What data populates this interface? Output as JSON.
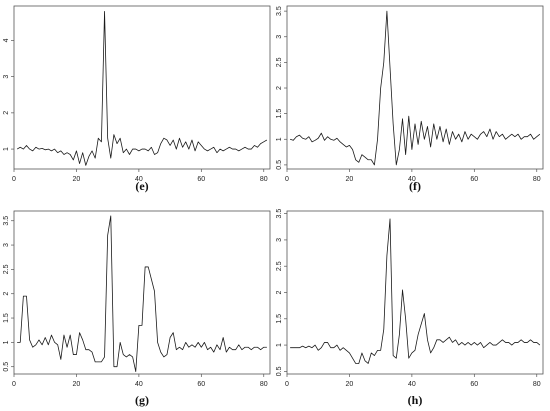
{
  "chart_data": [
    {
      "type": "line",
      "caption": "(e)",
      "xlim": [
        0,
        82
      ],
      "ylim": [
        0.45,
        4.95
      ],
      "x_ticks": [
        0,
        20,
        40,
        60,
        80
      ],
      "y_ticks": [
        1,
        2,
        3,
        4
      ],
      "x": [
        1,
        2,
        3,
        4,
        5,
        6,
        7,
        8,
        9,
        10,
        11,
        12,
        13,
        14,
        15,
        16,
        17,
        18,
        19,
        20,
        21,
        22,
        23,
        24,
        25,
        26,
        27,
        28,
        29,
        30,
        31,
        32,
        33,
        34,
        35,
        36,
        37,
        38,
        39,
        40,
        41,
        42,
        43,
        44,
        45,
        46,
        47,
        48,
        49,
        50,
        51,
        52,
        53,
        54,
        55,
        56,
        57,
        58,
        59,
        60,
        61,
        62,
        63,
        64,
        65,
        66,
        67,
        68,
        69,
        70,
        71,
        72,
        73,
        74,
        75,
        76,
        77,
        78,
        79,
        80,
        81
      ],
      "series": [
        {
          "values": [
            1.0,
            1.05,
            1.0,
            1.1,
            1.0,
            0.95,
            1.05,
            1.0,
            1.02,
            0.98,
            1.0,
            0.95,
            1.0,
            0.9,
            0.95,
            0.85,
            0.9,
            0.85,
            0.7,
            0.95,
            0.6,
            0.9,
            0.55,
            0.8,
            0.95,
            0.75,
            1.3,
            1.2,
            4.8,
            1.3,
            0.75,
            1.4,
            1.15,
            1.3,
            0.9,
            1.0,
            0.85,
            1.0,
            1.0,
            0.95,
            1.0,
            1.0,
            0.95,
            1.05,
            0.85,
            0.9,
            1.15,
            1.3,
            1.25,
            1.1,
            1.25,
            1.0,
            1.3,
            1.05,
            1.2,
            1.0,
            1.25,
            0.95,
            1.2,
            1.1,
            1.0,
            0.95,
            1.0,
            1.05,
            0.9,
            1.0,
            0.95,
            1.0,
            1.05,
            1.0,
            1.0,
            0.95,
            1.0,
            1.05,
            1.0,
            1.0,
            1.1,
            1.05,
            1.15,
            1.2,
            1.25
          ]
        }
      ]
    },
    {
      "type": "line",
      "caption": "(f)",
      "xlim": [
        0,
        82
      ],
      "ylim": [
        0.42,
        3.6
      ],
      "x_ticks": [
        0,
        20,
        40,
        60,
        80
      ],
      "y_ticks": [
        0.5,
        1.0,
        1.5,
        2.0,
        2.5,
        3.0,
        3.5
      ],
      "x": [
        1,
        2,
        3,
        4,
        5,
        6,
        7,
        8,
        9,
        10,
        11,
        12,
        13,
        14,
        15,
        16,
        17,
        18,
        19,
        20,
        21,
        22,
        23,
        24,
        25,
        26,
        27,
        28,
        29,
        30,
        31,
        32,
        33,
        34,
        35,
        36,
        37,
        38,
        39,
        40,
        41,
        42,
        43,
        44,
        45,
        46,
        47,
        48,
        49,
        50,
        51,
        52,
        53,
        54,
        55,
        56,
        57,
        58,
        59,
        60,
        61,
        62,
        63,
        64,
        65,
        66,
        67,
        68,
        69,
        70,
        71,
        72,
        73,
        74,
        75,
        76,
        77,
        78,
        79,
        80,
        81
      ],
      "series": [
        {
          "values": [
            1.0,
            0.98,
            1.05,
            1.08,
            1.02,
            1.0,
            1.05,
            0.95,
            0.98,
            1.02,
            1.12,
            0.98,
            1.05,
            1.0,
            0.98,
            1.02,
            0.95,
            0.9,
            0.85,
            0.88,
            0.8,
            0.6,
            0.55,
            0.7,
            0.65,
            0.6,
            0.6,
            0.5,
            1.0,
            2.0,
            2.5,
            3.5,
            2.4,
            1.3,
            0.5,
            0.8,
            1.4,
            0.7,
            1.45,
            0.8,
            1.3,
            0.9,
            1.35,
            1.0,
            1.25,
            0.85,
            1.3,
            1.0,
            1.25,
            0.95,
            1.2,
            0.9,
            1.15,
            1.0,
            1.1,
            0.95,
            1.15,
            1.0,
            1.1,
            1.05,
            1.0,
            1.1,
            1.15,
            1.05,
            1.2,
            1.0,
            1.15,
            1.05,
            1.1,
            1.0,
            1.05,
            1.1,
            1.05,
            1.1,
            1.0,
            1.05,
            1.05,
            1.1,
            1.0,
            1.05,
            1.1
          ]
        }
      ]
    },
    {
      "type": "line",
      "caption": "(g)",
      "xlim": [
        0,
        82
      ],
      "ylim": [
        0.35,
        3.7
      ],
      "x_ticks": [
        0,
        20,
        40,
        60,
        80
      ],
      "y_ticks": [
        0.5,
        1.0,
        1.5,
        2.0,
        2.5,
        3.0,
        3.5
      ],
      "x": [
        1,
        2,
        3,
        4,
        5,
        6,
        7,
        8,
        9,
        10,
        11,
        12,
        13,
        14,
        15,
        16,
        17,
        18,
        19,
        20,
        21,
        22,
        23,
        24,
        25,
        26,
        27,
        28,
        29,
        30,
        31,
        32,
        33,
        34,
        35,
        36,
        37,
        38,
        39,
        40,
        41,
        42,
        43,
        44,
        45,
        46,
        47,
        48,
        49,
        50,
        51,
        52,
        53,
        54,
        55,
        56,
        57,
        58,
        59,
        60,
        61,
        62,
        63,
        64,
        65,
        66,
        67,
        68,
        69,
        70,
        71,
        72,
        73,
        74,
        75,
        76,
        77,
        78,
        79,
        80,
        81
      ],
      "series": [
        {
          "values": [
            1.0,
            1.0,
            1.95,
            1.95,
            1.05,
            0.9,
            0.95,
            1.05,
            0.95,
            1.1,
            0.95,
            1.15,
            1.0,
            0.95,
            0.65,
            1.15,
            0.9,
            1.15,
            0.75,
            0.75,
            1.2,
            1.05,
            0.85,
            0.85,
            0.8,
            0.6,
            0.6,
            0.6,
            0.7,
            3.2,
            3.6,
            0.5,
            0.5,
            1.0,
            0.75,
            0.7,
            0.75,
            0.7,
            0.4,
            1.35,
            1.35,
            2.55,
            2.55,
            2.3,
            2.05,
            1.0,
            0.8,
            0.7,
            0.75,
            1.1,
            1.2,
            0.85,
            0.9,
            0.85,
            1.0,
            0.9,
            0.95,
            0.9,
            1.0,
            0.9,
            1.0,
            0.85,
            0.9,
            0.8,
            0.95,
            0.85,
            1.1,
            0.8,
            0.9,
            0.85,
            0.85,
            0.95,
            0.85,
            0.9,
            0.9,
            0.85,
            0.9,
            0.9,
            0.85,
            0.9,
            0.9
          ]
        }
      ]
    },
    {
      "type": "line",
      "caption": "(h)",
      "xlim": [
        0,
        82
      ],
      "ylim": [
        0.45,
        3.55
      ],
      "x_ticks": [
        0,
        20,
        40,
        60,
        80
      ],
      "y_ticks": [
        0.5,
        1.0,
        1.5,
        2.0,
        2.5,
        3.0,
        3.5
      ],
      "x": [
        1,
        2,
        3,
        4,
        5,
        6,
        7,
        8,
        9,
        10,
        11,
        12,
        13,
        14,
        15,
        16,
        17,
        18,
        19,
        20,
        21,
        22,
        23,
        24,
        25,
        26,
        27,
        28,
        29,
        30,
        31,
        32,
        33,
        34,
        35,
        36,
        37,
        38,
        39,
        40,
        41,
        42,
        43,
        44,
        45,
        46,
        47,
        48,
        49,
        50,
        51,
        52,
        53,
        54,
        55,
        56,
        57,
        58,
        59,
        60,
        61,
        62,
        63,
        64,
        65,
        66,
        67,
        68,
        69,
        70,
        71,
        72,
        73,
        74,
        75,
        76,
        77,
        78,
        79,
        80,
        81
      ],
      "series": [
        {
          "values": [
            0.95,
            0.95,
            0.95,
            0.95,
            0.98,
            0.95,
            0.98,
            0.95,
            1.0,
            0.9,
            0.95,
            1.05,
            1.05,
            0.95,
            0.95,
            1.0,
            0.9,
            0.95,
            0.9,
            0.85,
            0.75,
            0.65,
            0.65,
            0.85,
            0.7,
            0.65,
            0.85,
            0.8,
            0.9,
            0.9,
            1.3,
            2.7,
            3.4,
            0.8,
            0.75,
            1.2,
            2.05,
            1.5,
            0.75,
            0.85,
            0.9,
            1.2,
            1.4,
            1.6,
            1.1,
            0.85,
            0.95,
            1.1,
            1.1,
            1.05,
            1.1,
            1.15,
            1.05,
            1.1,
            1.0,
            1.05,
            1.0,
            1.05,
            1.0,
            1.05,
            1.0,
            1.05,
            0.95,
            1.0,
            1.05,
            1.0,
            1.0,
            1.05,
            1.1,
            1.05,
            1.05,
            1.0,
            1.05,
            1.05,
            1.1,
            1.05,
            1.05,
            1.1,
            1.05,
            1.05,
            1.0
          ]
        }
      ]
    }
  ]
}
